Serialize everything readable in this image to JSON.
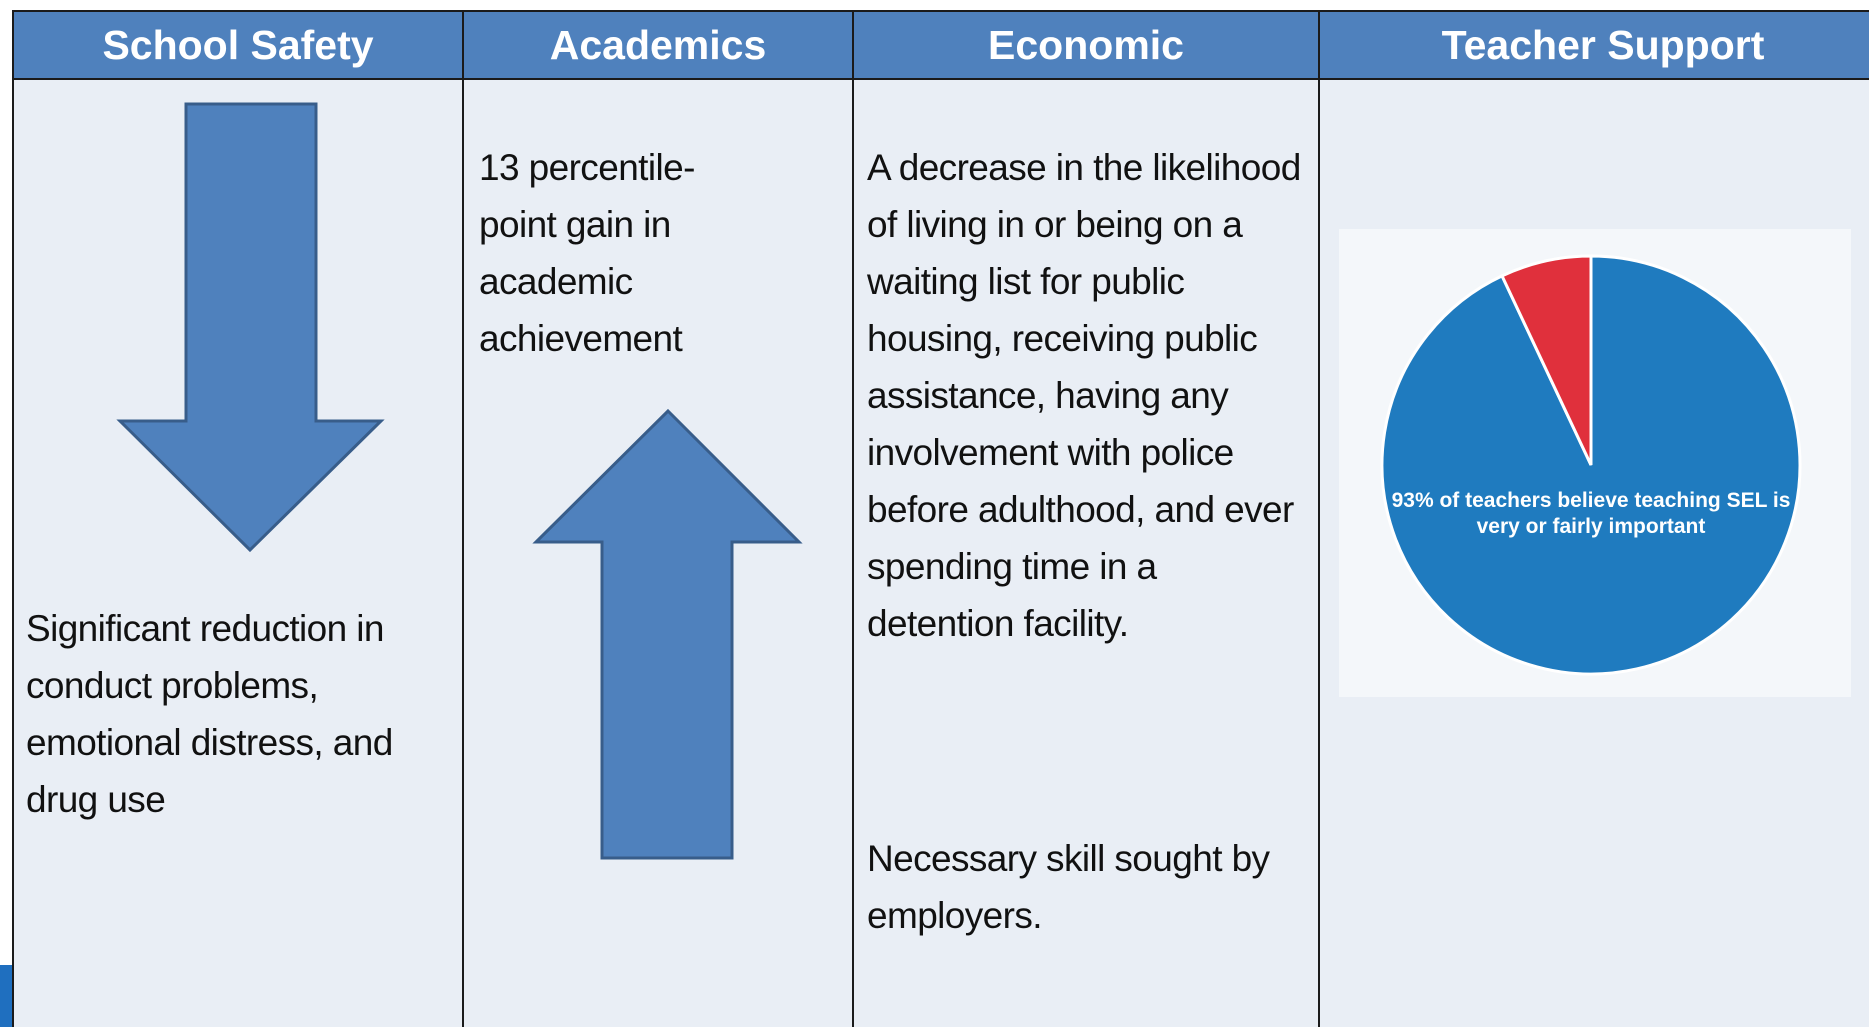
{
  "table": {
    "columns": [
      {
        "header": "School Safety",
        "text": "Significant reduction in conduct problems, emotional distress, and drug use"
      },
      {
        "header": "Academics",
        "text": "13 percentile-point gain in academic achievement"
      },
      {
        "header": "Economic",
        "text": [
          "A decrease in the likelihood of living in or being on a waiting list for public housing, receiving public assistance, having any involvement with police before adulthood, and ever spending time in a detention facility.",
          "Necessary skill sought by employers."
        ]
      },
      {
        "header": "Teacher Support",
        "chart": {
          "type": "pie",
          "values": [
            93,
            7
          ],
          "colors": [
            "#1f7bbf",
            "#e0303c"
          ],
          "label": "93% of teachers believe teaching SEL is very or fairly important"
        }
      }
    ]
  }
}
